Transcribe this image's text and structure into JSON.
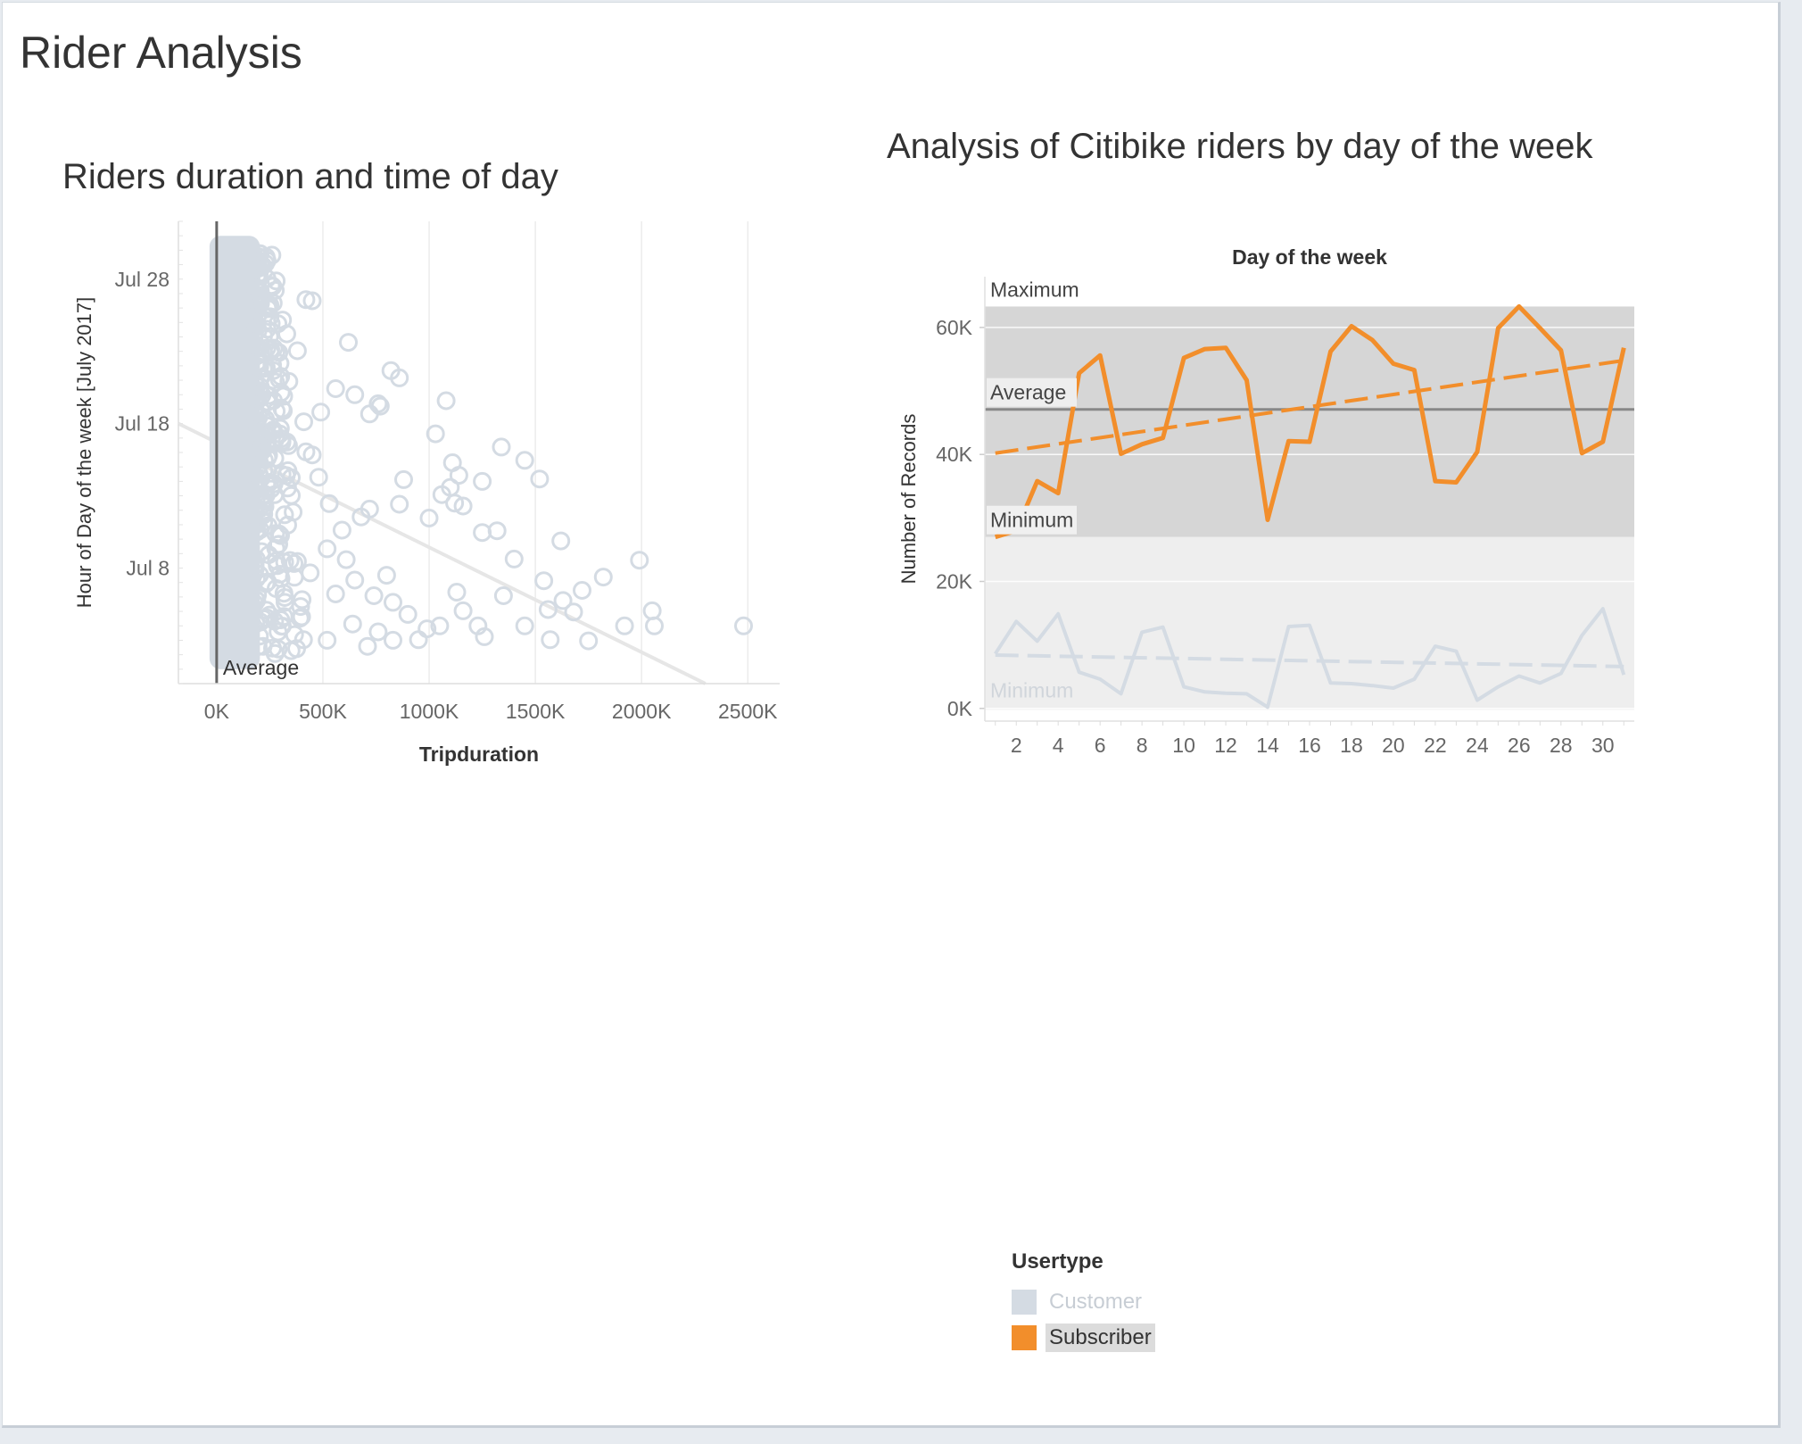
{
  "dashboard": {
    "title": "Rider Analysis"
  },
  "colors": {
    "customer": "#d4dbe3",
    "subscriber": "#f28e2b"
  },
  "scatter": {
    "title": "Riders duration and time of day",
    "chart_data": {
      "type": "scatter",
      "xlabel": "Tripduration",
      "ylabel": "Hour of Day of the week [July 2017]",
      "xlim": [
        -180000,
        2650000
      ],
      "ylim": [
        "2017-06-30",
        "2017-08-01"
      ],
      "x_ticks": [
        "0K",
        "500K",
        "1000K",
        "1500K",
        "2000K",
        "2500K"
      ],
      "x_tick_values": [
        0,
        500000,
        1000000,
        1500000,
        2000000,
        2500000
      ],
      "y_ticks": [
        "Jul 8",
        "Jul 18",
        "Jul 28"
      ],
      "y_tick_values": [
        "2017-07-08",
        "2017-07-18",
        "2017-07-28"
      ],
      "reference_line": {
        "label": "Average",
        "axis": "x",
        "value": 0
      },
      "trend_line": [
        {
          "x": -180000,
          "y": "2017-07-18T00:00"
        },
        {
          "x": 2300000,
          "y": "2017-06-30T00:00"
        }
      ],
      "series": [
        {
          "name": "Customer",
          "dense_band": {
            "x_min": 0,
            "x_max": 170000,
            "y_min": "2017-07-01",
            "y_max": "2017-07-31"
          },
          "points": [
            {
              "x": 420000,
              "y": "2017-07-26T14:00"
            },
            {
              "x": 450000,
              "y": "2017-07-26T12:00"
            },
            {
              "x": 620000,
              "y": "2017-07-23T15:00"
            },
            {
              "x": 820000,
              "y": "2017-07-21T16:00"
            },
            {
              "x": 860000,
              "y": "2017-07-21T04:00"
            },
            {
              "x": 760000,
              "y": "2017-07-19T09:00"
            },
            {
              "x": 770000,
              "y": "2017-07-19T05:00"
            },
            {
              "x": 1080000,
              "y": "2017-07-19T14:00"
            },
            {
              "x": 1030000,
              "y": "2017-07-17T07:00"
            },
            {
              "x": 1340000,
              "y": "2017-07-16T09:00"
            },
            {
              "x": 1450000,
              "y": "2017-07-15T11:00"
            },
            {
              "x": 1520000,
              "y": "2017-07-14T04:00"
            },
            {
              "x": 1110000,
              "y": "2017-07-15T07:00"
            },
            {
              "x": 1140000,
              "y": "2017-07-14T10:00"
            },
            {
              "x": 1250000,
              "y": "2017-07-14T00:00"
            },
            {
              "x": 880000,
              "y": "2017-07-14T03:00"
            },
            {
              "x": 860000,
              "y": "2017-07-12T10:00"
            },
            {
              "x": 1120000,
              "y": "2017-07-12T12:00"
            },
            {
              "x": 1160000,
              "y": "2017-07-12T07:00"
            },
            {
              "x": 1060000,
              "y": "2017-07-13T02:00"
            },
            {
              "x": 1100000,
              "y": "2017-07-13T14:00"
            },
            {
              "x": 1000000,
              "y": "2017-07-11T11:00"
            },
            {
              "x": 1250000,
              "y": "2017-07-10T11:00"
            },
            {
              "x": 1320000,
              "y": "2017-07-10T14:00"
            },
            {
              "x": 1620000,
              "y": "2017-07-09T21:00"
            },
            {
              "x": 1400000,
              "y": "2017-07-08T15:00"
            },
            {
              "x": 1990000,
              "y": "2017-07-08T13:00"
            },
            {
              "x": 1820000,
              "y": "2017-07-07T09:00"
            },
            {
              "x": 1540000,
              "y": "2017-07-07T03:00"
            },
            {
              "x": 1720000,
              "y": "2017-07-06T11:00"
            },
            {
              "x": 1350000,
              "y": "2017-07-06T02:00"
            },
            {
              "x": 1130000,
              "y": "2017-07-06T08:00"
            },
            {
              "x": 1630000,
              "y": "2017-07-05T18:00"
            },
            {
              "x": 1560000,
              "y": "2017-07-05T03:00"
            },
            {
              "x": 2050000,
              "y": "2017-07-05T01:00"
            },
            {
              "x": 2060000,
              "y": "2017-07-04T00:00"
            },
            {
              "x": 1920000,
              "y": "2017-07-04T00:00"
            },
            {
              "x": 1450000,
              "y": "2017-07-04T00:00"
            },
            {
              "x": 1230000,
              "y": "2017-07-04T00:00"
            },
            {
              "x": 1160000,
              "y": "2017-07-05T01:00"
            },
            {
              "x": 1050000,
              "y": "2017-07-04T00:00"
            },
            {
              "x": 950000,
              "y": "2017-07-03T01:00"
            },
            {
              "x": 1260000,
              "y": "2017-07-03T06:00"
            },
            {
              "x": 1570000,
              "y": "2017-07-03T01:00"
            },
            {
              "x": 1750000,
              "y": "2017-07-02T23:00"
            },
            {
              "x": 2480000,
              "y": "2017-07-04T00:00"
            },
            {
              "x": 710000,
              "y": "2017-07-02T14:00"
            },
            {
              "x": 520000,
              "y": "2017-07-03T00:00"
            },
            {
              "x": 830000,
              "y": "2017-07-03T00:00"
            },
            {
              "x": 590000,
              "y": "2017-07-10T15:00"
            },
            {
              "x": 680000,
              "y": "2017-07-11T13:00"
            },
            {
              "x": 720000,
              "y": "2017-07-12T02:00"
            },
            {
              "x": 530000,
              "y": "2017-07-12T11:00"
            },
            {
              "x": 480000,
              "y": "2017-07-14T07:00"
            },
            {
              "x": 450000,
              "y": "2017-07-15T20:00"
            },
            {
              "x": 410000,
              "y": "2017-07-18T03:00"
            },
            {
              "x": 490000,
              "y": "2017-07-18T19:00"
            },
            {
              "x": 560000,
              "y": "2017-07-20T10:00"
            },
            {
              "x": 650000,
              "y": "2017-07-20T00:00"
            },
            {
              "x": 720000,
              "y": "2017-07-18T16:00"
            },
            {
              "x": 610000,
              "y": "2017-07-08T14:00"
            },
            {
              "x": 650000,
              "y": "2017-07-07T04:00"
            },
            {
              "x": 800000,
              "y": "2017-07-07T12:00"
            },
            {
              "x": 830000,
              "y": "2017-07-05T15:00"
            },
            {
              "x": 740000,
              "y": "2017-07-06T02:00"
            },
            {
              "x": 560000,
              "y": "2017-07-06T05:00"
            },
            {
              "x": 380000,
              "y": "2017-07-08T11:00"
            },
            {
              "x": 360000,
              "y": "2017-07-11T21:00"
            },
            {
              "x": 420000,
              "y": "2017-07-16T01:00"
            },
            {
              "x": 340000,
              "y": "2017-07-20T22:00"
            },
            {
              "x": 380000,
              "y": "2017-07-23T01:00"
            },
            {
              "x": 310000,
              "y": "2017-07-25T04:00"
            },
            {
              "x": 280000,
              "y": "2017-07-27T21:00"
            },
            {
              "x": 330000,
              "y": "2017-07-24T05:00"
            },
            {
              "x": 260000,
              "y": "2017-07-22T02:00"
            },
            {
              "x": 300000,
              "y": "2017-07-17T16:00"
            },
            {
              "x": 270000,
              "y": "2017-07-13T20:00"
            },
            {
              "x": 290000,
              "y": "2017-07-09T15:00"
            },
            {
              "x": 320000,
              "y": "2017-07-05T23:00"
            },
            {
              "x": 250000,
              "y": "2017-07-04T18:00"
            },
            {
              "x": 230000,
              "y": "2017-07-29T02:00"
            },
            {
              "x": 240000,
              "y": "2017-07-19T12:00"
            },
            {
              "x": 220000,
              "y": "2017-07-11T16:00"
            },
            {
              "x": 240000,
              "y": "2017-07-07T01:00"
            },
            {
              "x": 400000,
              "y": "2017-07-04T15:00"
            },
            {
              "x": 440000,
              "y": "2017-07-07T16:00"
            },
            {
              "x": 520000,
              "y": "2017-07-09T08:00"
            },
            {
              "x": 900000,
              "y": "2017-07-04T19:00"
            },
            {
              "x": 990000,
              "y": "2017-07-03T19:00"
            },
            {
              "x": 1680000,
              "y": "2017-07-04T23:00"
            },
            {
              "x": 640000,
              "y": "2017-07-04T03:00"
            },
            {
              "x": 760000,
              "y": "2017-07-03T14:00"
            }
          ]
        }
      ]
    }
  },
  "line": {
    "title": "Analysis of Citibike riders by day of the week",
    "chart_data": {
      "type": "line",
      "header": "Day of the week",
      "xlabel": "",
      "ylabel": "Number of Records",
      "xlim": [
        0.5,
        31.5
      ],
      "ylim": [
        -2000,
        68000
      ],
      "x_ticks": [
        "2",
        "4",
        "6",
        "8",
        "10",
        "12",
        "14",
        "16",
        "18",
        "20",
        "22",
        "24",
        "26",
        "28",
        "30"
      ],
      "x_tick_values": [
        2,
        4,
        6,
        8,
        10,
        12,
        14,
        16,
        18,
        20,
        22,
        24,
        26,
        28,
        30
      ],
      "y_ticks": [
        "0K",
        "20K",
        "40K",
        "60K"
      ],
      "y_tick_values": [
        0,
        20000,
        40000,
        60000
      ],
      "x": [
        1,
        2,
        3,
        4,
        5,
        6,
        7,
        8,
        9,
        10,
        11,
        12,
        13,
        14,
        15,
        16,
        17,
        18,
        19,
        20,
        21,
        22,
        23,
        24,
        25,
        26,
        27,
        28,
        29,
        30,
        31
      ],
      "series": [
        {
          "name": "Subscriber",
          "values": [
            27000,
            28000,
            35800,
            33900,
            52800,
            55600,
            40100,
            41600,
            42600,
            55200,
            56600,
            56800,
            51700,
            29700,
            42100,
            42000,
            56200,
            60200,
            58000,
            54300,
            53300,
            35800,
            35600,
            40400,
            59900,
            63300,
            59900,
            56400,
            40200,
            42000,
            56800
          ],
          "trend": [
            40200,
            54800
          ],
          "band": {
            "min": 27000,
            "max": 63300,
            "avg": 47100,
            "labels": [
              "Minimum",
              "Maximum",
              "Average"
            ]
          }
        },
        {
          "name": "Customer",
          "values": [
            8600,
            13700,
            10600,
            14900,
            5700,
            4600,
            2300,
            12000,
            12800,
            3400,
            2600,
            2400,
            2300,
            200,
            12900,
            13100,
            4000,
            3900,
            3600,
            3200,
            4600,
            9800,
            9000,
            1300,
            3400,
            5100,
            4000,
            5500,
            11500,
            15700,
            5300
          ],
          "trend": [
            8400,
            6600
          ],
          "band": {
            "min": 200,
            "labels": [
              "Minimum"
            ]
          }
        }
      ]
    }
  },
  "legend": {
    "title": "Usertype",
    "items": [
      {
        "label": "Customer",
        "color": "#d4dbe3",
        "text_color": "#c7cdd4",
        "highlight": false
      },
      {
        "label": "Subscriber",
        "color": "#f28e2b",
        "text_color": "#333333",
        "highlight": true
      }
    ]
  }
}
